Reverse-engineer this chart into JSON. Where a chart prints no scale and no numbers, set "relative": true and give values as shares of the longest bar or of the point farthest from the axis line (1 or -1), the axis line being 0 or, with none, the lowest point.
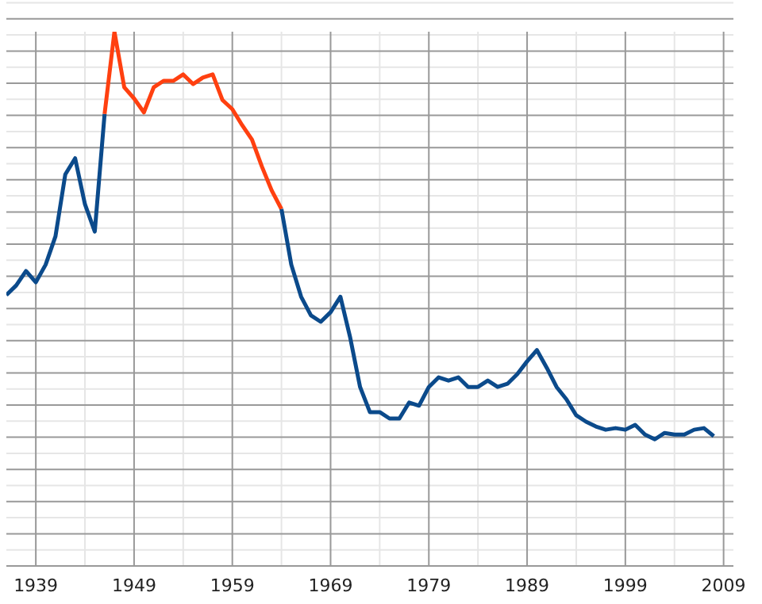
{
  "chart_data": {
    "type": "line",
    "relative": true,
    "grid": true,
    "xlim": [
      1936,
      2010
    ],
    "xticks": [
      1939,
      1949,
      1959,
      1969,
      1979,
      1989,
      1999,
      2009
    ],
    "series": [
      {
        "color": "#0b4a8b",
        "x": [
          1936,
          1937,
          1938,
          1939,
          1940,
          1941,
          1942,
          1943,
          1944,
          1945,
          1946
        ],
        "values": [
          0.507,
          0.525,
          0.552,
          0.531,
          0.564,
          0.617,
          0.733,
          0.763,
          0.677,
          0.626,
          0.846
        ]
      },
      {
        "color": "#ff4010",
        "x": [
          1946,
          1947,
          1948,
          1949,
          1950,
          1951,
          1952,
          1953,
          1954,
          1955,
          1956,
          1957,
          1958,
          1959,
          1960,
          1961,
          1962,
          1963,
          1964
        ],
        "values": [
          0.846,
          1,
          0.896,
          0.875,
          0.849,
          0.896,
          0.908,
          0.908,
          0.92,
          0.902,
          0.914,
          0.92,
          0.872,
          0.855,
          0.825,
          0.798,
          0.748,
          0.703,
          0.668
        ]
      },
      {
        "color": "#0b4a8b",
        "x": [
          1964,
          1965,
          1966,
          1967,
          1968,
          1969,
          1970,
          1971,
          1972,
          1973,
          1974,
          1975,
          1976,
          1977,
          1978,
          1979,
          1980,
          1981,
          1982,
          1983,
          1984,
          1985,
          1986,
          1987,
          1988,
          1989,
          1990,
          1991,
          1992,
          1993,
          1994,
          1995,
          1996,
          1997,
          1998,
          1999,
          2000,
          2001,
          2002,
          2003,
          2004,
          2005,
          2006,
          2007,
          2008
        ],
        "values": [
          0.668,
          0.564,
          0.504,
          0.469,
          0.457,
          0.475,
          0.504,
          0.427,
          0.335,
          0.288,
          0.288,
          0.276,
          0.276,
          0.306,
          0.3,
          0.335,
          0.353,
          0.347,
          0.353,
          0.335,
          0.335,
          0.347,
          0.335,
          0.341,
          0.359,
          0.383,
          0.404,
          0.371,
          0.335,
          0.312,
          0.282,
          0.27,
          0.261,
          0.255,
          0.258,
          0.255,
          0.264,
          0.246,
          0.237,
          0.249,
          0.246,
          0.246,
          0.255,
          0.258,
          0.243
        ]
      }
    ]
  }
}
